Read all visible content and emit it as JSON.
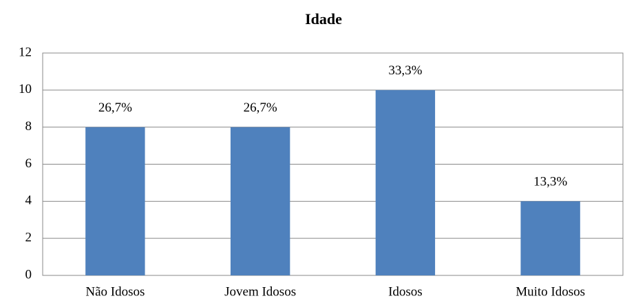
{
  "chart_data": {
    "type": "bar",
    "title": "Idade",
    "categories": [
      "Não Idosos",
      "Jovem Idosos",
      "Idosos",
      "Muito Idosos"
    ],
    "values": [
      8,
      8,
      10,
      4
    ],
    "data_labels": [
      "26,7%",
      "26,7%",
      "33,3%",
      "13,3%"
    ],
    "color": "#4f81bd",
    "ylim": [
      0,
      12
    ],
    "yticks": [
      0,
      2,
      4,
      6,
      8,
      10,
      12
    ],
    "grid": true
  }
}
